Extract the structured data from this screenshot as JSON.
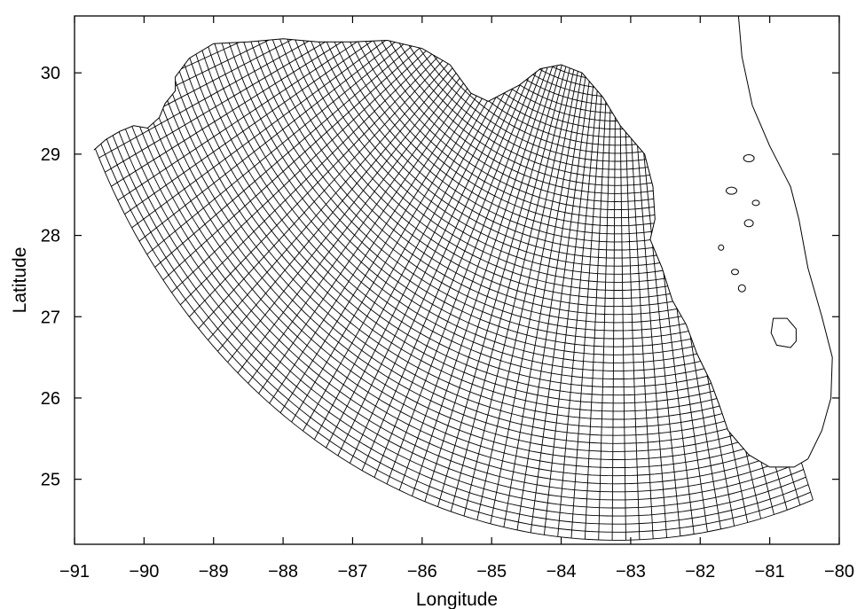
{
  "figure": {
    "x_axis": {
      "label": "Longitude",
      "range": [
        -91,
        -80
      ],
      "ticks": [
        -91,
        -90,
        -89,
        -88,
        -87,
        -86,
        -85,
        -84,
        -83,
        -82,
        -81,
        -80
      ],
      "tick_labels": [
        "−91",
        "−90",
        "−89",
        "−88",
        "−87",
        "−86",
        "−85",
        "−84",
        "−83",
        "−82",
        "−81",
        "−80"
      ]
    },
    "y_axis": {
      "label": "Latitude",
      "range": [
        24.2,
        30.7
      ],
      "ticks": [
        25,
        26,
        27,
        28,
        29,
        30
      ],
      "tick_labels": [
        "25",
        "26",
        "27",
        "28",
        "29",
        "30"
      ]
    },
    "grid": {
      "type": "curvilinear orthogonal",
      "center": [
        -83.2,
        32.5
      ],
      "inner_radius_deg": 2.2,
      "outer_radius_deg": 8.25,
      "angle_min_deg": 185,
      "angle_max_deg": 290,
      "radial_lines": 78,
      "arcs": 62
    },
    "colors": {
      "lines": "#000000",
      "background": "#ffffff"
    }
  }
}
